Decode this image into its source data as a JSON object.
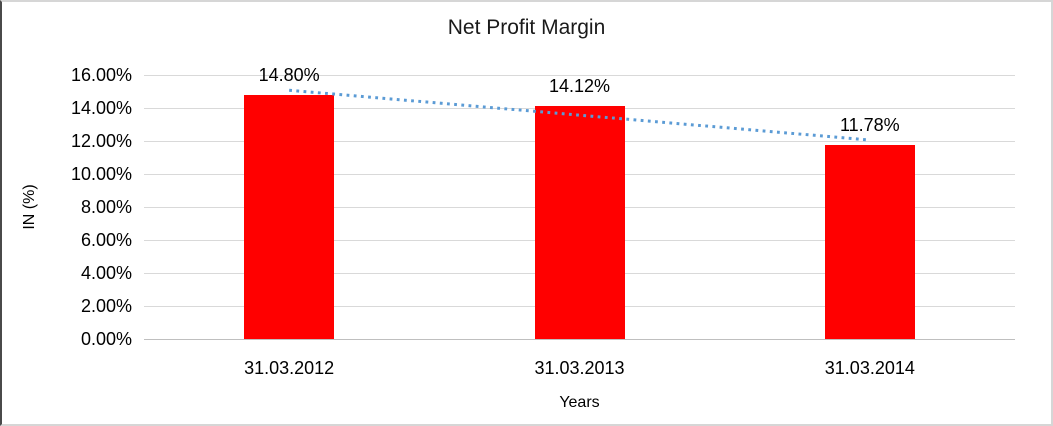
{
  "chart_data": {
    "type": "bar",
    "title": "Net Profit Margin",
    "categories": [
      "31.03.2012",
      "31.03.2013",
      "31.03.2014"
    ],
    "values": [
      14.8,
      14.12,
      11.78
    ],
    "data_labels": [
      "14.80%",
      "14.12%",
      "11.78%"
    ],
    "xlabel": "Years",
    "ylabel": "IN (%)",
    "ylim": [
      0,
      16
    ],
    "ytick_step": 2,
    "ytick_labels": [
      "0.00%",
      "2.00%",
      "4.00%",
      "6.00%",
      "8.00%",
      "10.00%",
      "12.00%",
      "14.00%",
      "16.00%"
    ],
    "grid": true,
    "legend": false,
    "bar_color": "#FF0000",
    "gridline_color": "#D9D9D9",
    "axis_line_color": "#BFBFBF",
    "text_color": "#000000",
    "trendline": {
      "type": "linear",
      "style": "dotted",
      "color": "#5B9BD5"
    }
  }
}
